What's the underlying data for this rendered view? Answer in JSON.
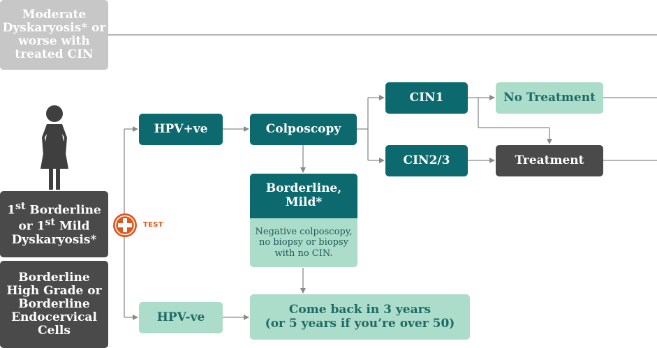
{
  "top_box": {
    "text": "Moderate\nDyskaryosis* or\nworse with\ntreated CIN"
  },
  "entry_box": {
    "text_html": "1<sup>st</sup> Borderline<br>or 1<sup>st</sup> Mild<br>Dyskaryosis*"
  },
  "borderline_box": {
    "text": "Borderline\nHigh Grade or\nBorderline\nEndocervical\nCells"
  },
  "test": {
    "label": "TEST"
  },
  "hpv_pos": {
    "label": "HPV+ve"
  },
  "hpv_neg": {
    "label": "HPV-ve"
  },
  "colposcopy": {
    "label": "Colposcopy"
  },
  "mild": {
    "title": "Borderline,\nMild*",
    "note": "Negative colposcopy,\nno biopsy or biopsy\nwith no CIN."
  },
  "cin1": {
    "label": "CIN1"
  },
  "cin23": {
    "label": "CIN2/3"
  },
  "no_treatment": {
    "label": "No Treatment"
  },
  "treatment": {
    "label": "Treatment"
  },
  "come_back": {
    "text": "Come back in 3 years\n(or 5 years if you’re over 50)"
  },
  "colors": {
    "teal": "#0c6a6e",
    "mint": "#acdcca",
    "dark": "#4a4a4a",
    "grey": "#c7c7c7",
    "test_orange": "#e0561b",
    "line": "#8a8a8a"
  },
  "icons": [
    "woman-icon",
    "plus-icon"
  ]
}
